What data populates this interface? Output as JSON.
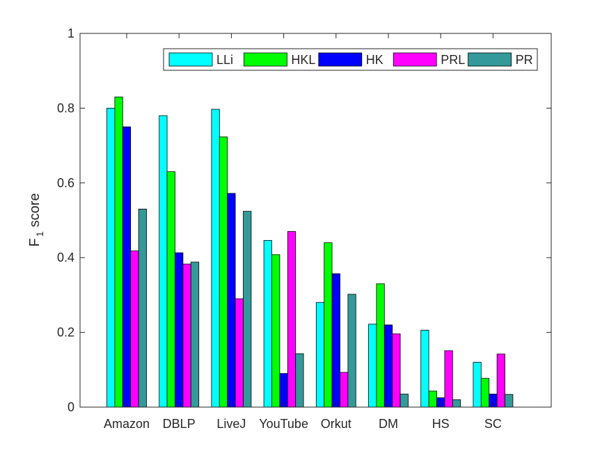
{
  "chart_data": {
    "type": "bar",
    "title": "",
    "xlabel": "",
    "ylabel": "F",
    "ylabel_sub": "1",
    "ylabel_suffix": "score",
    "ylim": [
      0,
      1
    ],
    "yticks": [
      0,
      0.2,
      0.4,
      0.6,
      0.8,
      1
    ],
    "ytick_labels": [
      "0",
      "0.2",
      "0.4",
      "0.6",
      "0.8",
      "1"
    ],
    "legend_position": "top-right",
    "grid": false,
    "categories": [
      "Amazon",
      "DBLP",
      "LiveJ",
      "YouTube",
      "Orkut",
      "DM",
      "HS",
      "SC"
    ],
    "series": [
      {
        "name": "LLi",
        "color": "#00ffff",
        "values": [
          0.8,
          0.78,
          0.797,
          0.446,
          0.28,
          0.222,
          0.206,
          0.12
        ]
      },
      {
        "name": "HKL",
        "color": "#00ff00",
        "values": [
          0.83,
          0.63,
          0.723,
          0.408,
          0.44,
          0.33,
          0.043,
          0.077
        ]
      },
      {
        "name": "HK",
        "color": "#0000ff",
        "values": [
          0.75,
          0.413,
          0.572,
          0.09,
          0.357,
          0.22,
          0.025,
          0.035
        ]
      },
      {
        "name": "PRL",
        "color": "#ff00ff",
        "values": [
          0.418,
          0.383,
          0.29,
          0.47,
          0.093,
          0.196,
          0.151,
          0.142
        ]
      },
      {
        "name": "PR",
        "color": "#339999",
        "values": [
          0.53,
          0.388,
          0.524,
          0.143,
          0.302,
          0.035,
          0.02,
          0.034
        ]
      }
    ]
  }
}
